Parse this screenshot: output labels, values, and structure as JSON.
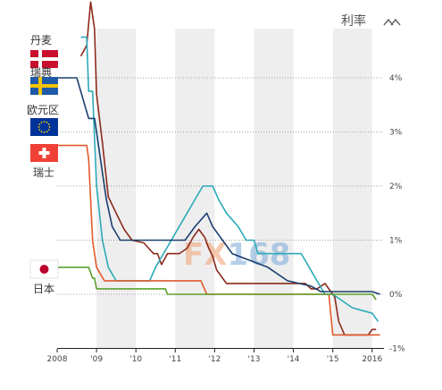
{
  "chart_data": {
    "type": "line",
    "title": "利率",
    "y_ticks": [
      "4%",
      "3%",
      "2%",
      "1%",
      "0%",
      "-1%"
    ],
    "y_tick_values": [
      4,
      3,
      2,
      1,
      0,
      -1
    ],
    "x_ticks": [
      "2008",
      "'09",
      "'10",
      "'11",
      "'12",
      "'13",
      "'14",
      "'15",
      "2016"
    ],
    "x_tick_values": [
      2008,
      2009,
      2010,
      2011,
      2012,
      2013,
      2014,
      2015,
      2016
    ],
    "x_range": [
      2008,
      2016.3
    ],
    "y_range": [
      -1.0,
      5.4
    ],
    "grid": "dotted horizontal",
    "shaded_years": [
      2009,
      2011,
      2013,
      2015
    ],
    "watermark": "FX168",
    "series": [
      {
        "name": "丹麦",
        "color": "#8b2a1a",
        "flag_colors": [
          "#c8102e",
          "#ffffff"
        ],
        "x": [
          2008.6,
          2008.75,
          2008.85,
          2008.95,
          2009.0,
          2009.15,
          2009.3,
          2009.5,
          2009.7,
          2009.9,
          2010.2,
          2010.45,
          2010.55,
          2010.65,
          2010.8,
          2011.1,
          2011.3,
          2011.45,
          2011.6,
          2011.75,
          2011.85,
          2011.95,
          2012.05,
          2012.3,
          2012.55,
          2012.8,
          2013.0,
          2013.5,
          2014.0,
          2014.3,
          2014.45,
          2014.6,
          2014.8,
          2014.95,
          2015.05,
          2015.15,
          2015.3,
          2015.9,
          2016.0,
          2016.1
        ],
        "y": [
          4.4,
          4.6,
          5.4,
          4.9,
          3.7,
          2.8,
          1.8,
          1.5,
          1.2,
          1.0,
          0.95,
          0.75,
          0.75,
          0.55,
          0.75,
          0.75,
          0.85,
          1.05,
          1.2,
          1.05,
          0.85,
          0.7,
          0.45,
          0.2,
          0.2,
          0.2,
          0.2,
          0.2,
          0.2,
          0.2,
          0.1,
          0.1,
          0.2,
          0.05,
          -0.05,
          -0.5,
          -0.75,
          -0.75,
          -0.65,
          -0.65
        ]
      },
      {
        "name": "瑞典",
        "color": "#2aaab8",
        "flag_colors": [
          "#1e5aa8",
          "#f5c400"
        ],
        "x": [
          2008.6,
          2008.75,
          2008.8,
          2008.9,
          2009.0,
          2009.15,
          2009.3,
          2009.5,
          2009.8,
          2010.35,
          2010.5,
          2010.7,
          2010.9,
          2011.1,
          2011.3,
          2011.5,
          2011.7,
          2011.95,
          2012.1,
          2012.3,
          2012.6,
          2012.8,
          2013.0,
          2013.1,
          2013.6,
          2013.9,
          2014.2,
          2014.6,
          2014.8,
          2015.0,
          2015.2,
          2015.5,
          2016.0,
          2016.15
        ],
        "y": [
          4.75,
          4.75,
          3.75,
          3.75,
          2.0,
          1.0,
          0.5,
          0.25,
          0.25,
          0.25,
          0.5,
          0.75,
          1.0,
          1.25,
          1.5,
          1.75,
          2.0,
          2.0,
          1.75,
          1.5,
          1.25,
          1.0,
          1.0,
          0.75,
          0.75,
          0.75,
          0.75,
          0.25,
          0.0,
          0.0,
          -0.1,
          -0.25,
          -0.35,
          -0.5
        ]
      },
      {
        "name": "欧元区",
        "color": "#1a3f6e",
        "flag_colors": [
          "#003399",
          "#ffcc00"
        ],
        "x": [
          2008.0,
          2008.5,
          2008.8,
          2008.95,
          2009.1,
          2009.25,
          2009.4,
          2009.6,
          2011.25,
          2011.5,
          2011.8,
          2011.95,
          2012.45,
          2013.35,
          2013.85,
          2014.45,
          2014.7,
          2015.0,
          2016.0,
          2016.2
        ],
        "y": [
          4.0,
          4.0,
          3.25,
          3.25,
          2.5,
          1.75,
          1.25,
          1.0,
          1.0,
          1.25,
          1.5,
          1.25,
          0.75,
          0.5,
          0.25,
          0.15,
          0.05,
          0.05,
          0.05,
          0.0
        ]
      },
      {
        "name": "瑞士",
        "color": "#e05a2b",
        "flag_colors": [
          "#ef4135",
          "#ffffff"
        ],
        "x": [
          2008.0,
          2008.75,
          2008.8,
          2008.9,
          2009.0,
          2009.2,
          2009.4,
          2011.65,
          2011.8,
          2014.9,
          2015.0,
          2016.2
        ],
        "y": [
          2.75,
          2.75,
          2.5,
          1.0,
          0.5,
          0.25,
          0.25,
          0.25,
          0.0,
          0.0,
          -0.75,
          -0.75
        ]
      },
      {
        "name": "日本",
        "color": "#5aa02c",
        "flag_colors": [
          "#ffffff",
          "#bc002d"
        ],
        "x": [
          2008.0,
          2008.8,
          2008.9,
          2008.95,
          2009.0,
          2010.75,
          2010.8,
          2016.0,
          2016.1
        ],
        "y": [
          0.5,
          0.5,
          0.3,
          0.3,
          0.1,
          0.1,
          0.0,
          0.0,
          -0.1
        ]
      }
    ]
  }
}
